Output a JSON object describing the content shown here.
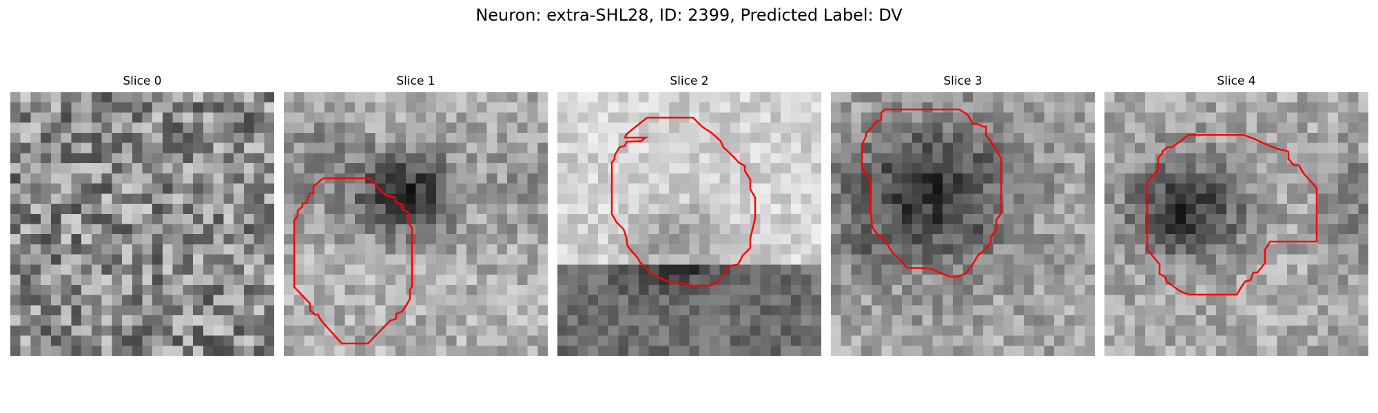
{
  "figure": {
    "title": "Neuron: extra-SHL28, ID: 2399, Predicted Label: DV"
  },
  "outline_color": "#ff0000",
  "slices": [
    {
      "title": "Slice 0",
      "has_outline": false,
      "content": "noise"
    },
    {
      "title": "Slice 1",
      "has_outline": true,
      "content": "dark blob upper-right of outline"
    },
    {
      "title": "Slice 2",
      "has_outline": true,
      "content": "bright upper region with dark band at bottom"
    },
    {
      "title": "Slice 3",
      "has_outline": true,
      "content": "dark blob filling outline"
    },
    {
      "title": "Slice 4",
      "has_outline": true,
      "content": "dark blob left of center"
    }
  ]
}
